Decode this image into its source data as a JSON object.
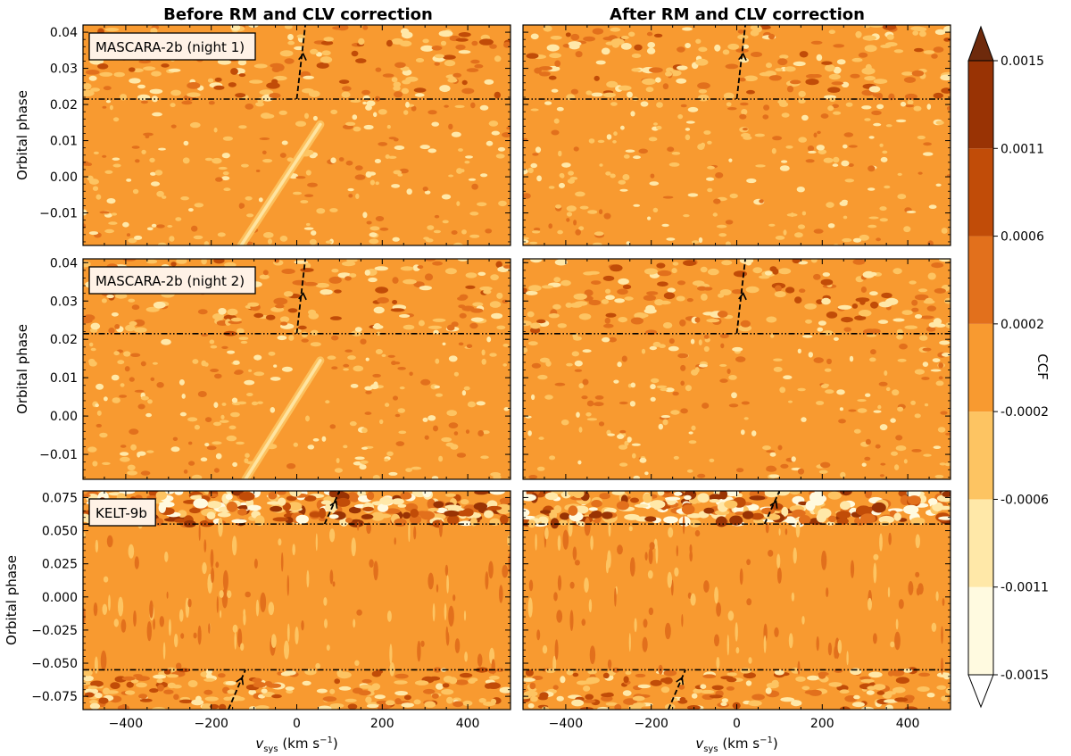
{
  "chart_data": {
    "type": "heatmap",
    "column_titles": [
      "Before RM and CLV correction",
      "After RM and CLV correction"
    ],
    "xlabel_main": "v",
    "xlabel_sub": "sys",
    "xlabel_unit": "(km s",
    "xlabel_exp": "−1",
    "xlabel_close": ")",
    "ylabel": "Orbital phase",
    "xlim": [
      -500,
      500
    ],
    "xticks": [
      -400,
      -200,
      0,
      200,
      400
    ],
    "xtick_labels": [
      "−400",
      "−200",
      "0",
      "200",
      "400"
    ],
    "rows": [
      {
        "label": "MASCARA-2b (night 1)",
        "ylim": [
          -0.019,
          0.042
        ],
        "yticks": [
          -0.01,
          0.0,
          0.01,
          0.02,
          0.03,
          0.04
        ],
        "ytick_labels": [
          "−0.01",
          "0.00",
          "0.01",
          "0.02",
          "0.03",
          "0.04"
        ],
        "contact_lines": [
          0.0215
        ],
        "planet_arrows": [
          {
            "from": [
              0,
              0.0215
            ],
            "to": [
              20,
              0.042
            ],
            "head_at": [
              15,
              0.034
            ]
          }
        ],
        "rm_trail": {
          "from": [
            -130,
            -0.019
          ],
          "to": [
            55,
            0.0145
          ]
        },
        "post_transit_above": 0.0215,
        "post_transit_below": null
      },
      {
        "label": "MASCARA-2b (night 2)",
        "ylim": [
          -0.0165,
          0.041
        ],
        "yticks": [
          -0.01,
          0.0,
          0.01,
          0.02,
          0.03,
          0.04
        ],
        "ytick_labels": [
          "−0.01",
          "0.00",
          "0.01",
          "0.02",
          "0.03",
          "0.04"
        ],
        "contact_lines": [
          0.0215
        ],
        "planet_arrows": [
          {
            "from": [
              0,
              0.0215
            ],
            "to": [
              20,
              0.041
            ],
            "head_at": [
              15,
              0.032
            ]
          }
        ],
        "rm_trail": {
          "from": [
            -120,
            -0.0165
          ],
          "to": [
            55,
            0.0145
          ]
        },
        "post_transit_above": 0.0215,
        "post_transit_below": null
      },
      {
        "label": "KELT-9b",
        "ylim": [
          -0.085,
          0.08
        ],
        "yticks": [
          -0.075,
          -0.05,
          -0.025,
          0.0,
          0.025,
          0.05,
          0.075
        ],
        "ytick_labels": [
          "−0.075",
          "−0.050",
          "−0.025",
          "0.000",
          "0.025",
          "0.050",
          "0.075"
        ],
        "contact_lines": [
          0.055,
          -0.055
        ],
        "planet_arrows": [
          {
            "from": [
              65,
              0.055
            ],
            "to": [
              100,
              0.08
            ],
            "head_at": [
              92,
              0.072
            ]
          },
          {
            "from": [
              -160,
              -0.085
            ],
            "to": [
              -120,
              -0.055
            ],
            "head_at": [
              -128,
              -0.061
            ]
          }
        ],
        "rm_trail": null,
        "post_transit_above": 0.055,
        "post_transit_below": -0.055
      }
    ],
    "colorbar": {
      "label": "CCF",
      "levels": [
        -0.0015,
        -0.0011,
        -0.0006,
        -0.0002,
        0.0002,
        0.0006,
        0.0011,
        0.0015
      ],
      "level_labels": [
        "-0.0015",
        "-0.0011",
        "-0.0006",
        "-0.0002",
        "0.0002",
        "0.0006",
        "0.0011",
        "0.0015"
      ],
      "extend": "both",
      "colors": [
        "#fffae0",
        "#ffe8a8",
        "#fdc462",
        "#f89a30",
        "#e2701c",
        "#c14c08",
        "#993304",
        "#6e2a0c"
      ],
      "under_color": "#ffffff",
      "over_color": "#6e2a0c"
    }
  }
}
